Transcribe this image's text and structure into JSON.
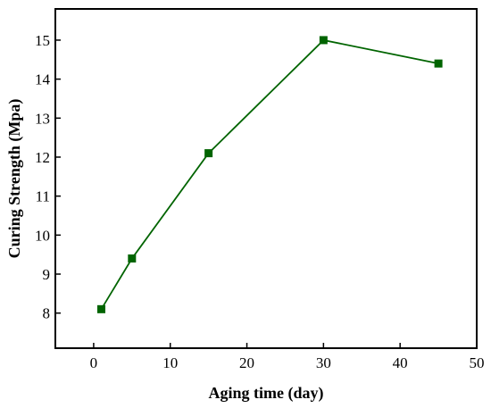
{
  "chart_data": {
    "type": "line",
    "title": "",
    "xlabel": "Aging time (day)",
    "ylabel": "Curing Strength (Mpa)",
    "xlim": [
      -5,
      50
    ],
    "ylim": [
      7.1,
      15.8
    ],
    "xticks": [
      0,
      10,
      20,
      30,
      40,
      50
    ],
    "yticks": [
      8,
      9,
      10,
      11,
      12,
      13,
      14,
      15
    ],
    "grid": false,
    "legend": "none",
    "series": [
      {
        "color": "#006400",
        "marker": "square",
        "x": [
          1,
          5,
          15,
          30,
          45
        ],
        "y": [
          8.1,
          9.4,
          12.1,
          15.0,
          14.4
        ]
      }
    ]
  }
}
